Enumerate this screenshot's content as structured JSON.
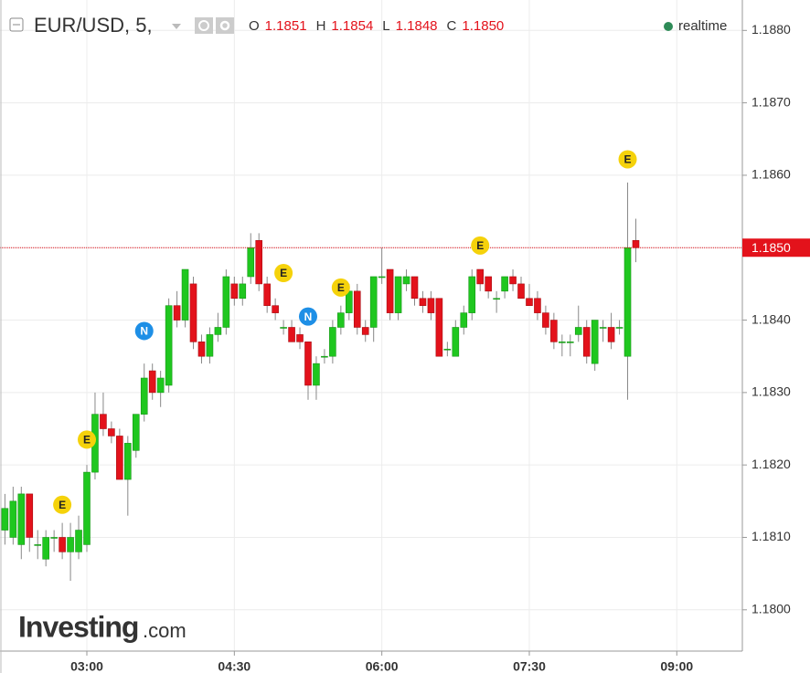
{
  "chart_data": {
    "type": "candlestick",
    "title": "EUR/USD, 5,",
    "ohlc_labels": [
      "O",
      "H",
      "L",
      "C"
    ],
    "last_value_labels": [
      "1.1851",
      "1.1854",
      "1.1848",
      "1.1850"
    ],
    "status": "realtime",
    "watermark": "Investing",
    "watermark_suffix": ".com",
    "up_color": "#1fc71f",
    "down_color": "#e3121b",
    "grid": true,
    "x": [
      130,
      135,
      140,
      145,
      150,
      155,
      160,
      165,
      170,
      175,
      180,
      185,
      190,
      195,
      200,
      205,
      210,
      215,
      220,
      225,
      230,
      235,
      240,
      245,
      250,
      255,
      260,
      265,
      270,
      275,
      280,
      285,
      290,
      295,
      300,
      305,
      310,
      315,
      320,
      325,
      330,
      335,
      340,
      345,
      350,
      355,
      360,
      365,
      370,
      375,
      380,
      385,
      390,
      395,
      400,
      405,
      410,
      415,
      420,
      425,
      430,
      435,
      440,
      445,
      450,
      455,
      460,
      465,
      470,
      475,
      480,
      485,
      490,
      495,
      500,
      505,
      510,
      515
    ],
    "open": [
      1.1811,
      1.181,
      1.1809,
      1.1816,
      1.1809,
      1.1807,
      1.181,
      1.181,
      1.1808,
      1.1808,
      1.1809,
      1.1819,
      1.1827,
      1.1825,
      1.1824,
      1.1818,
      1.1822,
      1.1827,
      1.1833,
      1.183,
      1.1831,
      1.1842,
      1.184,
      1.1845,
      1.1837,
      1.1835,
      1.1838,
      1.1839,
      1.1845,
      1.1843,
      1.1846,
      1.1851,
      1.1845,
      1.1842,
      1.1839,
      1.1839,
      1.1838,
      1.1837,
      1.1831,
      1.1835,
      1.1835,
      1.1839,
      1.1841,
      1.1844,
      1.1839,
      1.1839,
      1.1846,
      1.1847,
      1.1841,
      1.1845,
      1.1846,
      1.1843,
      1.1843,
      1.1843,
      1.1836,
      1.1835,
      1.1839,
      1.1841,
      1.1847,
      1.1846,
      1.1843,
      1.1844,
      1.1846,
      1.1845,
      1.1843,
      1.1843,
      1.1841,
      1.184,
      1.1837,
      1.1837,
      1.1838,
      1.1839,
      1.1834,
      1.1839,
      1.1839,
      1.1839,
      1.1835,
      1.1851
    ],
    "high": [
      1.1816,
      1.1817,
      1.1817,
      1.1816,
      1.1811,
      1.1811,
      1.1811,
      1.1812,
      1.1812,
      1.1813,
      1.182,
      1.183,
      1.183,
      1.1826,
      1.1825,
      1.1824,
      1.1827,
      1.1834,
      1.1834,
      1.1833,
      1.1843,
      1.1844,
      1.1847,
      1.1846,
      1.1838,
      1.1839,
      1.1841,
      1.1847,
      1.1846,
      1.1846,
      1.1852,
      1.1852,
      1.1846,
      1.1843,
      1.184,
      1.184,
      1.1839,
      1.1837,
      1.1835,
      1.1836,
      1.184,
      1.1842,
      1.1845,
      1.1845,
      1.184,
      1.1846,
      1.185,
      1.1847,
      1.1846,
      1.1847,
      1.1846,
      1.1844,
      1.1844,
      1.1843,
      1.1837,
      1.184,
      1.1842,
      1.1847,
      1.1847,
      1.1846,
      1.1844,
      1.1846,
      1.1847,
      1.1846,
      1.1845,
      1.1844,
      1.1842,
      1.1841,
      1.1838,
      1.1838,
      1.1842,
      1.184,
      1.184,
      1.184,
      1.1841,
      1.184,
      1.1859,
      1.1854
    ],
    "low": [
      1.1809,
      1.1809,
      1.1807,
      1.1808,
      1.1807,
      1.1806,
      1.1808,
      1.1807,
      1.1804,
      1.1807,
      1.1808,
      1.1818,
      1.1824,
      1.1823,
      1.1818,
      1.1813,
      1.1821,
      1.1826,
      1.1829,
      1.1828,
      1.183,
      1.1839,
      1.1839,
      1.1836,
      1.1834,
      1.1834,
      1.1837,
      1.1838,
      1.1842,
      1.1842,
      1.1845,
      1.1844,
      1.1841,
      1.184,
      1.1838,
      1.1837,
      1.1836,
      1.1829,
      1.1829,
      1.1834,
      1.1834,
      1.1838,
      1.184,
      1.1838,
      1.1837,
      1.1837,
      1.1845,
      1.184,
      1.184,
      1.1844,
      1.1842,
      1.1841,
      1.184,
      1.1835,
      1.1835,
      1.1835,
      1.1838,
      1.184,
      1.1844,
      1.1843,
      1.1841,
      1.1843,
      1.1844,
      1.1843,
      1.1842,
      1.184,
      1.1838,
      1.1836,
      1.1835,
      1.1835,
      1.1837,
      1.1834,
      1.1833,
      1.1837,
      1.1836,
      1.1838,
      1.1829,
      1.1848
    ],
    "close": [
      1.1814,
      1.1815,
      1.1816,
      1.181,
      1.1809,
      1.181,
      1.181,
      1.1808,
      1.181,
      1.1811,
      1.1819,
      1.1827,
      1.1825,
      1.1824,
      1.1818,
      1.1823,
      1.1827,
      1.1832,
      1.183,
      1.1832,
      1.1842,
      1.184,
      1.1847,
      1.1837,
      1.1835,
      1.1838,
      1.1839,
      1.1846,
      1.1843,
      1.1845,
      1.185,
      1.1845,
      1.1842,
      1.1841,
      1.1839,
      1.1837,
      1.1837,
      1.1831,
      1.1834,
      1.1835,
      1.1839,
      1.1841,
      1.1844,
      1.1839,
      1.1838,
      1.1846,
      1.1846,
      1.1841,
      1.1846,
      1.1846,
      1.1843,
      1.1842,
      1.1841,
      1.1835,
      1.1836,
      1.1839,
      1.1841,
      1.1846,
      1.1845,
      1.1844,
      1.1843,
      1.1846,
      1.1845,
      1.1843,
      1.1842,
      1.1841,
      1.1839,
      1.1837,
      1.1837,
      1.1837,
      1.1839,
      1.1835,
      1.184,
      1.1839,
      1.1837,
      1.1839,
      1.185,
      1.185
    ],
    "events": [
      {
        "x": 165,
        "y": 1.18145,
        "label": "E",
        "color": "#f5d20b"
      },
      {
        "x": 180,
        "y": 1.18235,
        "label": "E",
        "color": "#f5d20b"
      },
      {
        "x": 215,
        "y": 1.18385,
        "label": "N",
        "color": "#1e8fe6"
      },
      {
        "x": 300,
        "y": 1.18465,
        "label": "E",
        "color": "#f5d20b"
      },
      {
        "x": 315,
        "y": 1.18405,
        "label": "N",
        "color": "#1e8fe6"
      },
      {
        "x": 335,
        "y": 1.18445,
        "label": "E",
        "color": "#f5d20b"
      },
      {
        "x": 420,
        "y": 1.18503,
        "label": "E",
        "color": "#f5d20b"
      },
      {
        "x": 510,
        "y": 1.18622,
        "label": "E",
        "color": "#f5d20b"
      }
    ],
    "xlim": [
      127,
      580
    ],
    "xticks": [
      {
        "value": 180,
        "label": "03:00"
      },
      {
        "value": 270,
        "label": "04:30"
      },
      {
        "value": 360,
        "label": "06:00"
      },
      {
        "value": 450,
        "label": "07:30"
      },
      {
        "value": 540,
        "label": "09:00"
      }
    ],
    "ylim": [
      1.17943,
      1.18842
    ],
    "yticks": [
      {
        "value": 1.18,
        "label": "1.1800"
      },
      {
        "value": 1.181,
        "label": "1.1810"
      },
      {
        "value": 1.182,
        "label": "1.1820"
      },
      {
        "value": 1.183,
        "label": "1.1830"
      },
      {
        "value": 1.184,
        "label": "1.1840"
      },
      {
        "value": 1.185,
        "label": "1.1850"
      },
      {
        "value": 1.186,
        "label": "1.1860"
      },
      {
        "value": 1.187,
        "label": "1.1870"
      },
      {
        "value": 1.188,
        "label": "1.1880"
      }
    ]
  }
}
